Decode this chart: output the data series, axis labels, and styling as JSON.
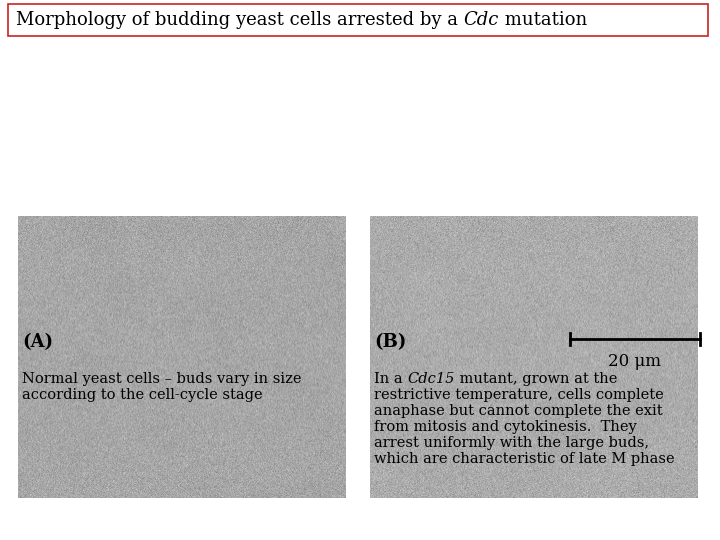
{
  "title_pre": "Morphology of budding yeast cells arrested by a ",
  "title_italic": "Cdc",
  "title_post": " mutation",
  "title_fontsize": 13,
  "title_box_edgecolor": "#cc2222",
  "bg_color": "#ffffff",
  "label_A": "(A)",
  "label_B": "(B)",
  "scale_bar_text": "20 μm",
  "caption_fontsize": 10.5,
  "cap_left_1": "Normal yeast cells – buds vary in size",
  "cap_left_2": "according to the cell-cycle stage",
  "cap_right_pre": "In a ",
  "cap_right_italic": "Cdc15",
  "cap_right_post": " mutant, grown at the",
  "cap_right_2": "restrictive temperature, cells complete",
  "cap_right_3": "anaphase but cannot complete the exit",
  "cap_right_4": "from mitosis and cytokinesis.  They",
  "cap_right_5": "arrest uniformly with the large buds,",
  "cap_right_6": "which are characteristic of late M phase",
  "img_gray": 0.68
}
